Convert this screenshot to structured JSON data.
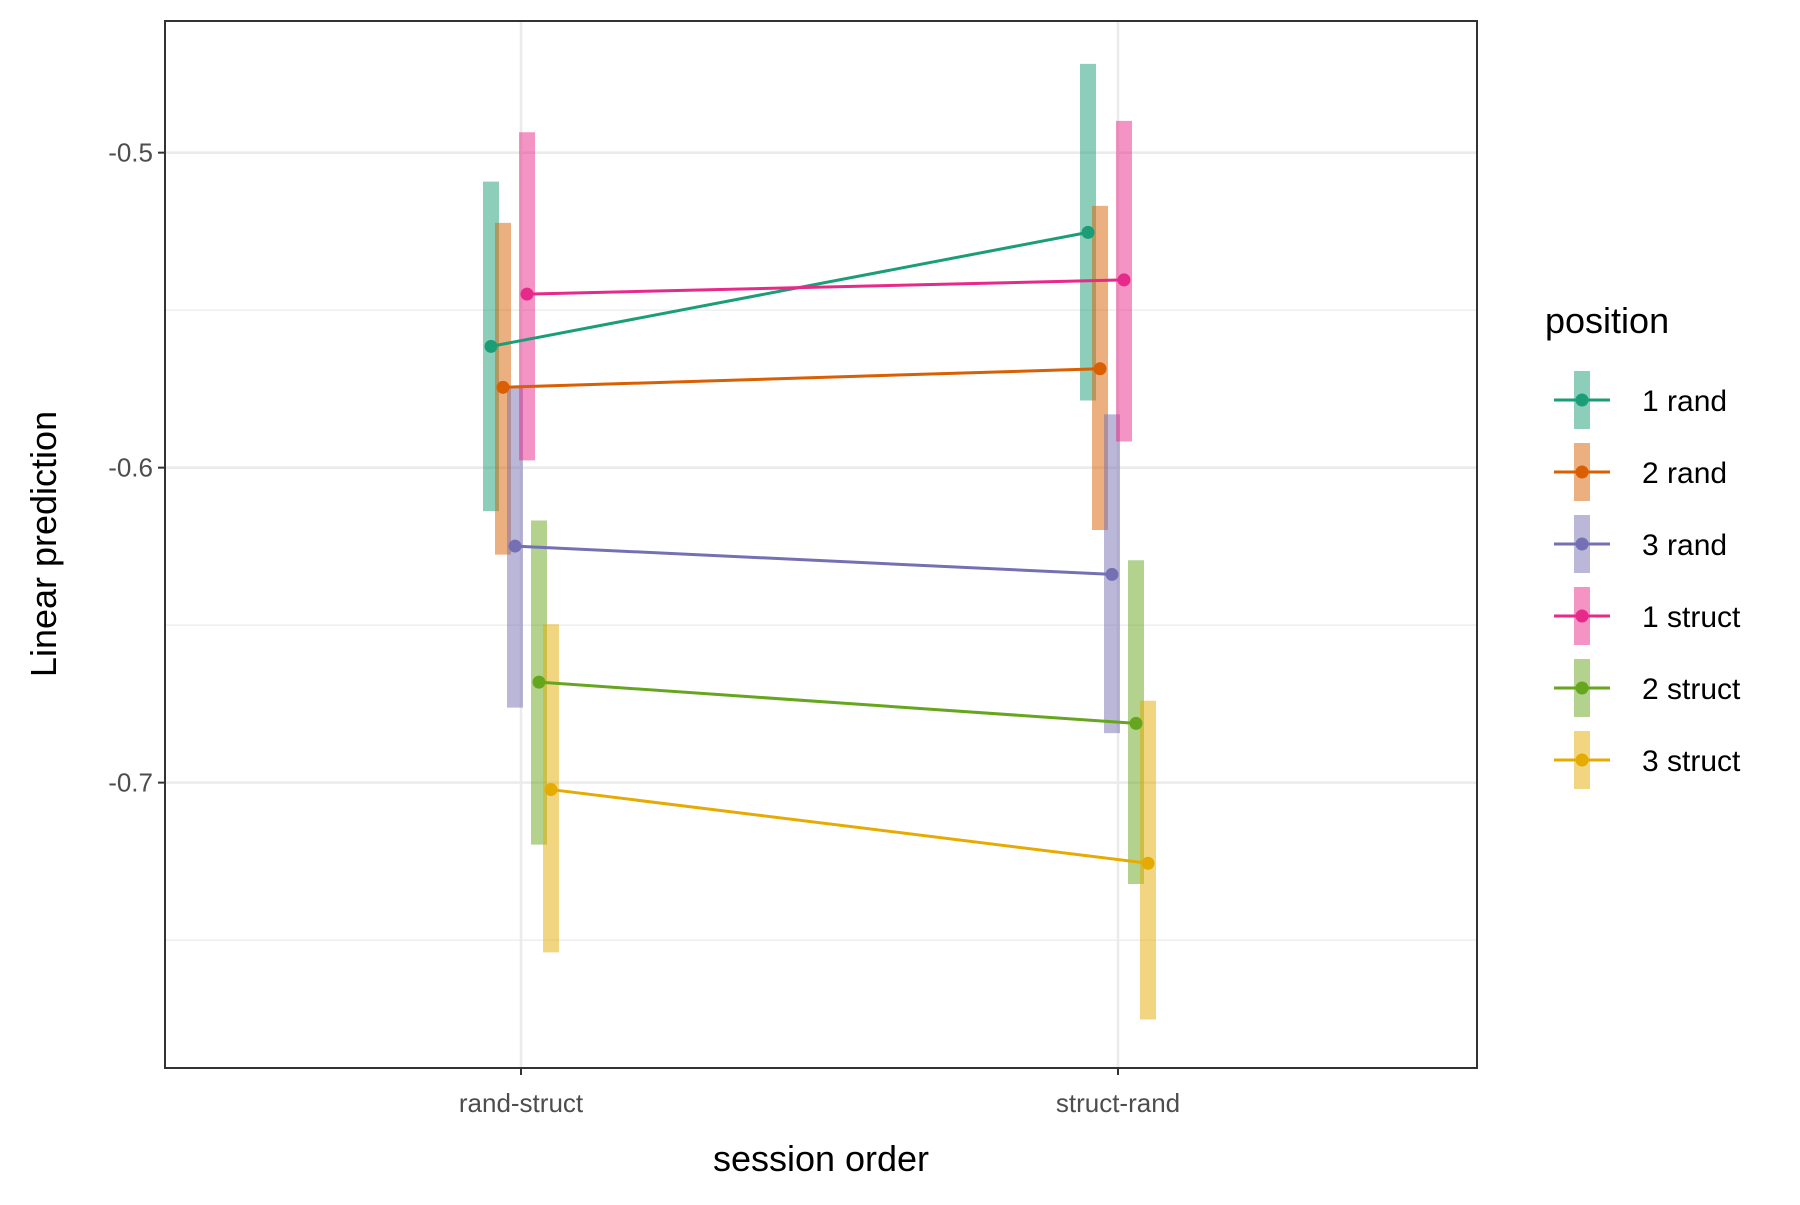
{
  "chart_data": {
    "type": "line",
    "xlabel": "session order",
    "ylabel": "Linear prediction",
    "categories": [
      "rand-struct",
      "struct-rand"
    ],
    "ylim": [
      -0.7906,
      -0.4582
    ],
    "yticks": [
      -0.5,
      -0.6,
      -0.7
    ],
    "ytick_labels": [
      "-0.5",
      "-0.6",
      "-0.7"
    ],
    "grid": true,
    "legend": {
      "title": "position",
      "placement": "right"
    },
    "series": [
      {
        "name": "1 rand",
        "color": "#1B9E77",
        "values": [
          -0.5615,
          -0.5253
        ],
        "lower": [
          -0.6138,
          -0.5787
        ],
        "upper": [
          -0.5092,
          -0.4718
        ]
      },
      {
        "name": "2 rand",
        "color": "#D95F02",
        "values": [
          -0.5745,
          -0.5686
        ],
        "lower": [
          -0.6276,
          -0.6198
        ],
        "upper": [
          -0.5223,
          -0.5169
        ]
      },
      {
        "name": "3 rand",
        "color": "#7570B3",
        "values": [
          -0.6249,
          -0.6339
        ],
        "lower": [
          -0.6762,
          -0.6843
        ],
        "upper": [
          -0.5745,
          -0.5831
        ]
      },
      {
        "name": "1 struct",
        "color": "#E7298A",
        "values": [
          -0.5449,
          -0.5404
        ],
        "lower": [
          -0.5977,
          -0.5917
        ],
        "upper": [
          -0.4935,
          -0.4899
        ]
      },
      {
        "name": "2 struct",
        "color": "#66A61E",
        "values": [
          -0.6681,
          -0.6812
        ],
        "lower": [
          -0.7197,
          -0.7322
        ],
        "upper": [
          -0.6168,
          -0.6294
        ]
      },
      {
        "name": "3 struct",
        "color": "#E6AB02",
        "values": [
          -0.7022,
          -0.7256
        ],
        "lower": [
          -0.7539,
          -0.7752
        ],
        "upper": [
          -0.6497,
          -0.674
        ]
      }
    ]
  }
}
